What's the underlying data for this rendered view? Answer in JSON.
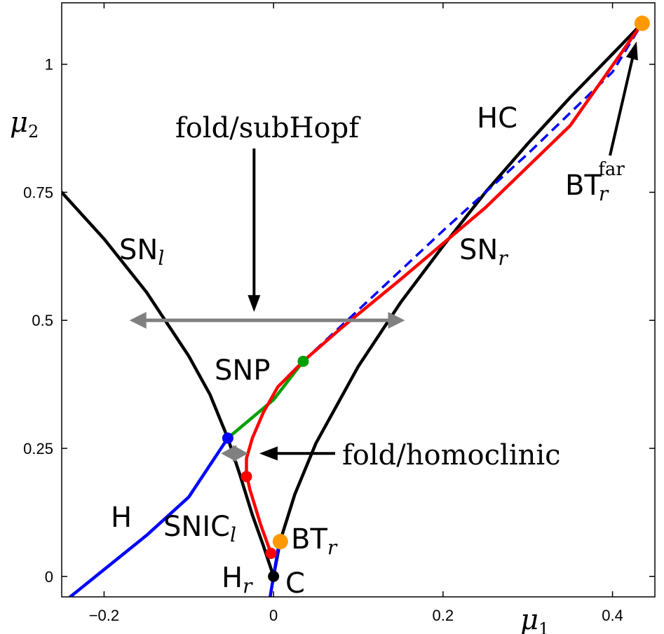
{
  "chart_data": {
    "type": "line",
    "title": "",
    "xlabel": "μ₁",
    "ylabel": "μ₂",
    "xlim": [
      -0.25,
      0.45
    ],
    "ylim": [
      -0.04,
      1.12
    ],
    "x_ticks": [
      {
        "value": -0.2,
        "label": "−0.2"
      },
      {
        "value": 0,
        "label": "0"
      },
      {
        "value": 0.2,
        "label": "0.2"
      },
      {
        "value": 0.4,
        "label": "0.4"
      }
    ],
    "y_ticks": [
      {
        "value": 0,
        "label": "0"
      },
      {
        "value": 0.25,
        "label": "0.25"
      },
      {
        "value": 0.5,
        "label": "0.5"
      },
      {
        "value": 0.75,
        "label": "0.75"
      },
      {
        "value": 1,
        "label": "1"
      }
    ],
    "grid": false,
    "series": [
      {
        "key": "sn_left",
        "color": "#000000",
        "dashed": false,
        "points": [
          [
            -0.25,
            0.75
          ],
          [
            -0.2,
            0.659
          ],
          [
            -0.15,
            0.555
          ],
          [
            -0.1,
            0.43
          ],
          [
            -0.075,
            0.355
          ],
          [
            -0.054,
            0.27
          ],
          [
            -0.04,
            0.2
          ],
          [
            -0.025,
            0.12
          ],
          [
            -0.012,
            0.06
          ],
          [
            -0.002,
            0.01
          ],
          [
            0.0,
            0.0
          ]
        ]
      },
      {
        "key": "sn_right",
        "color": "#000000",
        "dashed": false,
        "points": [
          [
            0.0,
            0.0
          ],
          [
            0.008,
            0.07
          ],
          [
            0.025,
            0.16
          ],
          [
            0.05,
            0.26
          ],
          [
            0.1,
            0.41
          ],
          [
            0.15,
            0.535
          ],
          [
            0.2,
            0.645
          ],
          [
            0.25,
            0.75
          ],
          [
            0.3,
            0.845
          ],
          [
            0.35,
            0.935
          ],
          [
            0.4,
            1.02
          ],
          [
            0.435,
            1.08
          ]
        ]
      },
      {
        "key": "hopf",
        "color": "#0000ff",
        "dashed": false,
        "points": [
          [
            -0.24,
            -0.04
          ],
          [
            -0.15,
            0.08
          ],
          [
            -0.1,
            0.155
          ],
          [
            -0.054,
            0.27
          ]
        ]
      },
      {
        "key": "hopf_right",
        "color": "#0000ff",
        "dashed": false,
        "points": [
          [
            -0.004,
            -0.04
          ],
          [
            0.0,
            0.0
          ],
          [
            0.003,
            0.03
          ],
          [
            0.006,
            0.06
          ]
        ]
      },
      {
        "key": "hopf_dashed",
        "color": "#0000ff",
        "dashed": true,
        "points": [
          [
            0.035,
            0.42
          ],
          [
            0.1,
            0.52
          ],
          [
            0.2,
            0.675
          ],
          [
            0.3,
            0.825
          ],
          [
            0.4,
            0.985
          ],
          [
            0.435,
            1.08
          ]
        ]
      },
      {
        "key": "snp",
        "color": "#00a000",
        "dashed": false,
        "points": [
          [
            -0.054,
            0.27
          ],
          [
            0.0,
            0.345
          ],
          [
            0.035,
            0.42
          ]
        ]
      },
      {
        "key": "homoclinic",
        "color": "#ff0000",
        "dashed": false,
        "points": [
          [
            -0.003,
            0.045
          ],
          [
            -0.015,
            0.1
          ],
          [
            -0.028,
            0.17
          ],
          [
            -0.032,
            0.2
          ],
          [
            -0.032,
            0.23
          ],
          [
            -0.025,
            0.27
          ],
          [
            -0.012,
            0.32
          ],
          [
            0.005,
            0.37
          ],
          [
            0.035,
            0.42
          ],
          [
            0.08,
            0.485
          ],
          [
            0.15,
            0.58
          ],
          [
            0.25,
            0.72
          ],
          [
            0.35,
            0.88
          ],
          [
            0.435,
            1.08
          ]
        ]
      }
    ],
    "points": [
      {
        "key": "bt_far",
        "x": 0.435,
        "y": 1.08,
        "color": "#ff9900"
      },
      {
        "key": "snp_pt",
        "x": 0.035,
        "y": 0.42,
        "color": "#00a000"
      },
      {
        "key": "gh_pt",
        "x": -0.054,
        "y": 0.27,
        "color": "#0000ff"
      },
      {
        "key": "red_upper",
        "x": -0.032,
        "y": 0.195,
        "color": "#ff0000"
      },
      {
        "key": "bt_r",
        "x": 0.008,
        "y": 0.068,
        "color": "#ff9900"
      },
      {
        "key": "red_lower",
        "x": -0.003,
        "y": 0.045,
        "color": "#ff0000"
      },
      {
        "key": "cusp",
        "x": 0.0,
        "y": 0.0,
        "color": "#000000"
      }
    ],
    "annotations": {
      "fold_subhopf": {
        "text": "fold/subHopf",
        "path_y": 0.5,
        "x_from": -0.17,
        "x_to": 0.155,
        "arrow_x": -0.023,
        "arrow_from_y": 0.84
      },
      "fold_homoclinic": {
        "text": "fold/homoclinic",
        "y": 0.24,
        "x_from": -0.057,
        "x_to": -0.025,
        "arrow_from_x": 0.085
      }
    },
    "labels": {
      "hc": "HC",
      "sn_l": "SN",
      "sn_l_sub": "l",
      "sn_r": "SN",
      "sn_r_sub": "r",
      "snp": "SNP",
      "h": "H",
      "snic": "SNIC",
      "snic_sub": "l",
      "bt_r": "BT",
      "bt_r_sub": "r",
      "bt_far": "BT",
      "bt_far_sub": "r",
      "bt_far_sup": "far",
      "h_r": "H",
      "h_r_sub": "r",
      "c": "C",
      "fold_subhopf": "fold/subHopf",
      "fold_homoclinic": "fold/homoclinic",
      "mu1": "μ",
      "mu1_sub": "1",
      "mu2": "μ",
      "mu2_sub": "2"
    }
  }
}
